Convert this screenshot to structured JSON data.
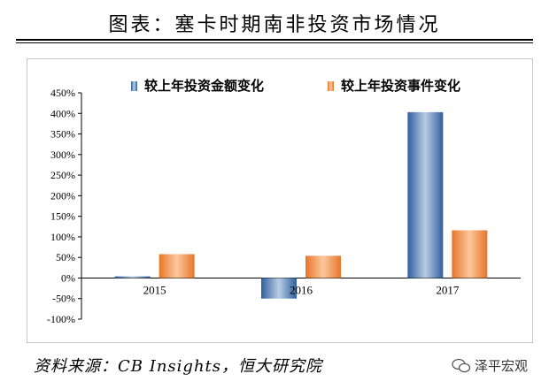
{
  "header": {
    "title": "图表：塞卡时期南非投资市场情况"
  },
  "footer": {
    "source": "资料来源：CB Insights，恒大研究院",
    "watermark": "泽平宏观"
  },
  "chart_data": {
    "type": "bar",
    "categories": [
      "2015",
      "2016",
      "2017"
    ],
    "series": [
      {
        "name": "较上年投资金额变化",
        "values": [
          4,
          -50,
          403
        ],
        "color": "#4a7ab8"
      },
      {
        "name": "较上年投资事件变化",
        "values": [
          58,
          54,
          116
        ],
        "color": "#f08a3a"
      }
    ],
    "ylim": [
      -100,
      450
    ],
    "yticks": [
      "-100%",
      "-50%",
      "0%",
      "50%",
      "100%",
      "150%",
      "200%",
      "250%",
      "300%",
      "350%",
      "400%",
      "450%"
    ],
    "ytick_values": [
      -100,
      -50,
      0,
      50,
      100,
      150,
      200,
      250,
      300,
      350,
      400,
      450
    ],
    "legend": "top",
    "grid": false,
    "xlabel": "",
    "ylabel": ""
  }
}
